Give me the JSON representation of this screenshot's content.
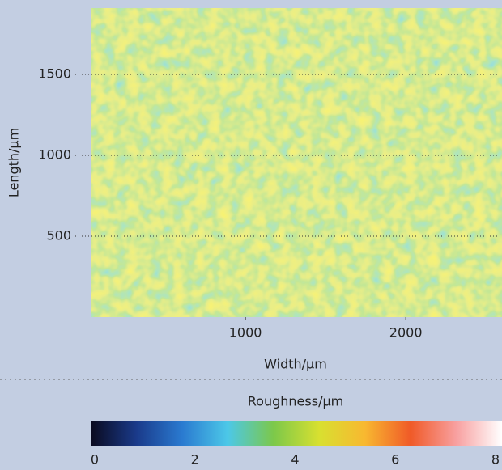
{
  "chart_data": {
    "type": "heatmap",
    "xlabel": "Width/µm",
    "ylabel": "Length/µm",
    "xlim": [
      35,
      2600
    ],
    "ylim": [
      0,
      1910
    ],
    "xticks": [
      1000,
      2000
    ],
    "yticks": [
      500,
      1000,
      1500
    ],
    "grid": true,
    "colorbar": {
      "label": "Roughness/µm",
      "lim": [
        0,
        8
      ],
      "ticks": [
        0,
        2,
        4,
        6,
        8
      ],
      "colors": [
        "#0a0a1e",
        "#1a3a8a",
        "#2a7ad0",
        "#4cc8e8",
        "#7cc84a",
        "#d8e030",
        "#f8b830",
        "#f05a28",
        "#f8a0a0",
        "#ffffff"
      ]
    }
  }
}
